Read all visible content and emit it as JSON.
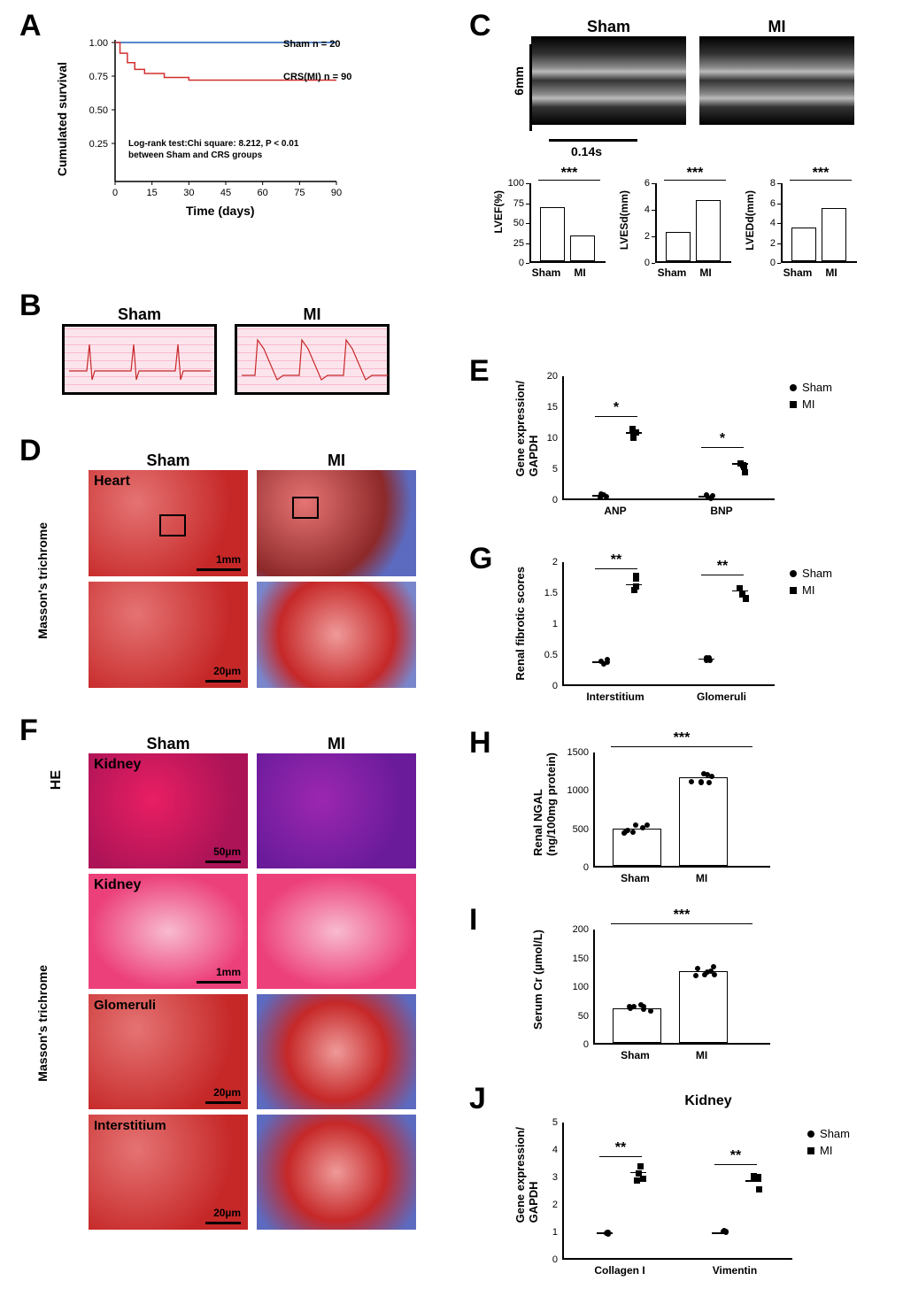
{
  "labels": {
    "A": "A",
    "B": "B",
    "C": "C",
    "D": "D",
    "E": "E",
    "F": "F",
    "G": "G",
    "H": "H",
    "I": "I",
    "J": "J"
  },
  "groups": {
    "sham": "Sham",
    "mi": "MI"
  },
  "panelA": {
    "ylabel": "Cumulated survival",
    "xlabel": "Time (days)",
    "sham_label": "Sham  n = 20",
    "crs_label": "CRS(MI)  n = 90",
    "stat_text": "Log-rank test:Chi square: 8.212, P < 0.01\nbetween Sham and CRS groups",
    "yticks": [
      "0.25",
      "0.50",
      "0.75",
      "1.00"
    ],
    "xticks": [
      "0",
      "15",
      "30",
      "45",
      "60",
      "75",
      "90"
    ],
    "sham_color": "#1e5eb8",
    "crs_color": "#d32f2f",
    "sham_points": [
      [
        0,
        1.0
      ],
      [
        90,
        1.0
      ]
    ],
    "crs_points": [
      [
        0,
        1.0
      ],
      [
        2,
        0.92
      ],
      [
        5,
        0.85
      ],
      [
        8,
        0.8
      ],
      [
        12,
        0.77
      ],
      [
        20,
        0.74
      ],
      [
        30,
        0.72
      ],
      [
        90,
        0.72
      ]
    ]
  },
  "panelB": {
    "title_sham": "Sham",
    "title_mi": "MI"
  },
  "panelC": {
    "scale_v": "6mm",
    "scale_h": "0.14s",
    "charts": [
      {
        "ylabel": "LVEF(%)",
        "ymax": 100,
        "ytick": 25,
        "sham_mean": 68,
        "mi_mean": 32,
        "sig": "***"
      },
      {
        "ylabel": "LVESd(mm)",
        "ymax": 6,
        "ytick": 2,
        "sham_mean": 2.2,
        "mi_mean": 4.6,
        "sig": "***"
      },
      {
        "ylabel": "LVEDd(mm)",
        "ymax": 8,
        "ytick": 2,
        "sham_mean": 3.4,
        "mi_mean": 5.3,
        "sig": "***"
      }
    ]
  },
  "panelD": {
    "stain": "Masson's trichrome",
    "tissue": "Heart",
    "scale1": "1mm",
    "scale2": "20µm"
  },
  "panelE": {
    "ylabel": "Gene expression/\nGAPDH",
    "ymax": 20,
    "ytick": 5,
    "categories": [
      "ANP",
      "BNP"
    ],
    "sham_vals": [
      0.8,
      0.7
    ],
    "mi_vals": [
      11,
      6
    ],
    "sig": [
      "*",
      "*"
    ],
    "legend": [
      "Sham",
      "MI"
    ]
  },
  "panelF": {
    "he": "HE",
    "tissue": "Kidney",
    "stain": "Masson's trichrome",
    "labels": [
      "Glomeruli",
      "Interstitium"
    ],
    "scales": [
      "50µm",
      "1mm",
      "20µm",
      "20µm"
    ]
  },
  "panelG": {
    "ylabel": "Renal fibrotic scores",
    "ymax": 2.0,
    "ytick": 0.5,
    "categories": [
      "Interstitium",
      "Glomeruli"
    ],
    "sham_vals": [
      0.4,
      0.45
    ],
    "mi_vals": [
      1.65,
      1.55
    ],
    "sig": [
      "**",
      "**"
    ],
    "legend": [
      "Sham",
      "MI"
    ]
  },
  "panelH": {
    "ylabel": "Renal NGAL\n(ng/100mg protein)",
    "ymax": 1500,
    "ytick": 500,
    "sham_mean": 490,
    "mi_mean": 1150,
    "sig": "***"
  },
  "panelI": {
    "ylabel": "Serum Cr (µmol/L)",
    "ymax": 200,
    "ytick": 50,
    "sham_mean": 60,
    "mi_mean": 125,
    "sig": "***"
  },
  "panelJ": {
    "title": "Kidney",
    "ylabel": "Gene expression/\nGAPDH",
    "ymax": 5,
    "ytick": 1,
    "categories": [
      "Collagen I",
      "Vimentin"
    ],
    "sham_vals": [
      1.0,
      1.0
    ],
    "mi_vals": [
      3.2,
      2.9
    ],
    "sig": [
      "**",
      "**"
    ],
    "legend": [
      "Sham",
      "MI"
    ]
  }
}
